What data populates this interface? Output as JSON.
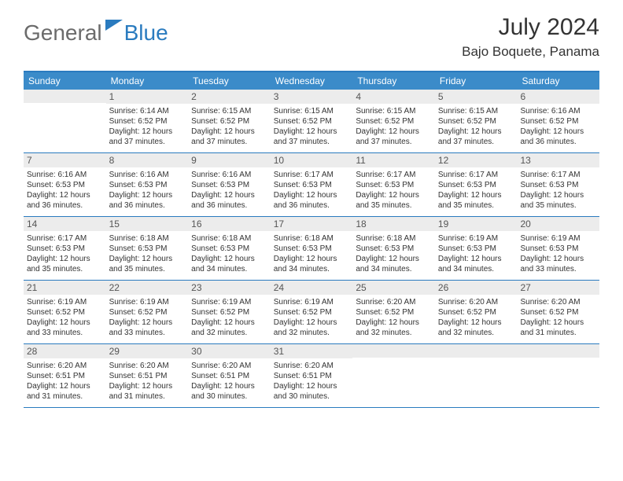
{
  "logo": {
    "general": "General",
    "blue": "Blue"
  },
  "title": {
    "month": "July 2024",
    "location": "Bajo Boquete, Panama"
  },
  "colors": {
    "header_bg": "#3b8bc9",
    "header_text": "#ffffff",
    "rule": "#2a7bbf",
    "daynum_bg": "#ececec",
    "body_text": "#333333",
    "logo_gray": "#6b6b6b",
    "logo_blue": "#2a7bbf"
  },
  "days_of_week": [
    "Sunday",
    "Monday",
    "Tuesday",
    "Wednesday",
    "Thursday",
    "Friday",
    "Saturday"
  ],
  "weeks": [
    [
      {
        "n": "",
        "blank": true
      },
      {
        "n": "1",
        "sr": "Sunrise: 6:14 AM",
        "ss": "Sunset: 6:52 PM",
        "dl1": "Daylight: 12 hours",
        "dl2": "and 37 minutes."
      },
      {
        "n": "2",
        "sr": "Sunrise: 6:15 AM",
        "ss": "Sunset: 6:52 PM",
        "dl1": "Daylight: 12 hours",
        "dl2": "and 37 minutes."
      },
      {
        "n": "3",
        "sr": "Sunrise: 6:15 AM",
        "ss": "Sunset: 6:52 PM",
        "dl1": "Daylight: 12 hours",
        "dl2": "and 37 minutes."
      },
      {
        "n": "4",
        "sr": "Sunrise: 6:15 AM",
        "ss": "Sunset: 6:52 PM",
        "dl1": "Daylight: 12 hours",
        "dl2": "and 37 minutes."
      },
      {
        "n": "5",
        "sr": "Sunrise: 6:15 AM",
        "ss": "Sunset: 6:52 PM",
        "dl1": "Daylight: 12 hours",
        "dl2": "and 37 minutes."
      },
      {
        "n": "6",
        "sr": "Sunrise: 6:16 AM",
        "ss": "Sunset: 6:52 PM",
        "dl1": "Daylight: 12 hours",
        "dl2": "and 36 minutes."
      }
    ],
    [
      {
        "n": "7",
        "sr": "Sunrise: 6:16 AM",
        "ss": "Sunset: 6:53 PM",
        "dl1": "Daylight: 12 hours",
        "dl2": "and 36 minutes."
      },
      {
        "n": "8",
        "sr": "Sunrise: 6:16 AM",
        "ss": "Sunset: 6:53 PM",
        "dl1": "Daylight: 12 hours",
        "dl2": "and 36 minutes."
      },
      {
        "n": "9",
        "sr": "Sunrise: 6:16 AM",
        "ss": "Sunset: 6:53 PM",
        "dl1": "Daylight: 12 hours",
        "dl2": "and 36 minutes."
      },
      {
        "n": "10",
        "sr": "Sunrise: 6:17 AM",
        "ss": "Sunset: 6:53 PM",
        "dl1": "Daylight: 12 hours",
        "dl2": "and 36 minutes."
      },
      {
        "n": "11",
        "sr": "Sunrise: 6:17 AM",
        "ss": "Sunset: 6:53 PM",
        "dl1": "Daylight: 12 hours",
        "dl2": "and 35 minutes."
      },
      {
        "n": "12",
        "sr": "Sunrise: 6:17 AM",
        "ss": "Sunset: 6:53 PM",
        "dl1": "Daylight: 12 hours",
        "dl2": "and 35 minutes."
      },
      {
        "n": "13",
        "sr": "Sunrise: 6:17 AM",
        "ss": "Sunset: 6:53 PM",
        "dl1": "Daylight: 12 hours",
        "dl2": "and 35 minutes."
      }
    ],
    [
      {
        "n": "14",
        "sr": "Sunrise: 6:17 AM",
        "ss": "Sunset: 6:53 PM",
        "dl1": "Daylight: 12 hours",
        "dl2": "and 35 minutes."
      },
      {
        "n": "15",
        "sr": "Sunrise: 6:18 AM",
        "ss": "Sunset: 6:53 PM",
        "dl1": "Daylight: 12 hours",
        "dl2": "and 35 minutes."
      },
      {
        "n": "16",
        "sr": "Sunrise: 6:18 AM",
        "ss": "Sunset: 6:53 PM",
        "dl1": "Daylight: 12 hours",
        "dl2": "and 34 minutes."
      },
      {
        "n": "17",
        "sr": "Sunrise: 6:18 AM",
        "ss": "Sunset: 6:53 PM",
        "dl1": "Daylight: 12 hours",
        "dl2": "and 34 minutes."
      },
      {
        "n": "18",
        "sr": "Sunrise: 6:18 AM",
        "ss": "Sunset: 6:53 PM",
        "dl1": "Daylight: 12 hours",
        "dl2": "and 34 minutes."
      },
      {
        "n": "19",
        "sr": "Sunrise: 6:19 AM",
        "ss": "Sunset: 6:53 PM",
        "dl1": "Daylight: 12 hours",
        "dl2": "and 34 minutes."
      },
      {
        "n": "20",
        "sr": "Sunrise: 6:19 AM",
        "ss": "Sunset: 6:53 PM",
        "dl1": "Daylight: 12 hours",
        "dl2": "and 33 minutes."
      }
    ],
    [
      {
        "n": "21",
        "sr": "Sunrise: 6:19 AM",
        "ss": "Sunset: 6:52 PM",
        "dl1": "Daylight: 12 hours",
        "dl2": "and 33 minutes."
      },
      {
        "n": "22",
        "sr": "Sunrise: 6:19 AM",
        "ss": "Sunset: 6:52 PM",
        "dl1": "Daylight: 12 hours",
        "dl2": "and 33 minutes."
      },
      {
        "n": "23",
        "sr": "Sunrise: 6:19 AM",
        "ss": "Sunset: 6:52 PM",
        "dl1": "Daylight: 12 hours",
        "dl2": "and 32 minutes."
      },
      {
        "n": "24",
        "sr": "Sunrise: 6:19 AM",
        "ss": "Sunset: 6:52 PM",
        "dl1": "Daylight: 12 hours",
        "dl2": "and 32 minutes."
      },
      {
        "n": "25",
        "sr": "Sunrise: 6:20 AM",
        "ss": "Sunset: 6:52 PM",
        "dl1": "Daylight: 12 hours",
        "dl2": "and 32 minutes."
      },
      {
        "n": "26",
        "sr": "Sunrise: 6:20 AM",
        "ss": "Sunset: 6:52 PM",
        "dl1": "Daylight: 12 hours",
        "dl2": "and 32 minutes."
      },
      {
        "n": "27",
        "sr": "Sunrise: 6:20 AM",
        "ss": "Sunset: 6:52 PM",
        "dl1": "Daylight: 12 hours",
        "dl2": "and 31 minutes."
      }
    ],
    [
      {
        "n": "28",
        "sr": "Sunrise: 6:20 AM",
        "ss": "Sunset: 6:51 PM",
        "dl1": "Daylight: 12 hours",
        "dl2": "and 31 minutes."
      },
      {
        "n": "29",
        "sr": "Sunrise: 6:20 AM",
        "ss": "Sunset: 6:51 PM",
        "dl1": "Daylight: 12 hours",
        "dl2": "and 31 minutes."
      },
      {
        "n": "30",
        "sr": "Sunrise: 6:20 AM",
        "ss": "Sunset: 6:51 PM",
        "dl1": "Daylight: 12 hours",
        "dl2": "and 30 minutes."
      },
      {
        "n": "31",
        "sr": "Sunrise: 6:20 AM",
        "ss": "Sunset: 6:51 PM",
        "dl1": "Daylight: 12 hours",
        "dl2": "and 30 minutes."
      },
      {
        "n": "",
        "blank": true
      },
      {
        "n": "",
        "blank": true
      },
      {
        "n": "",
        "blank": true
      }
    ]
  ]
}
